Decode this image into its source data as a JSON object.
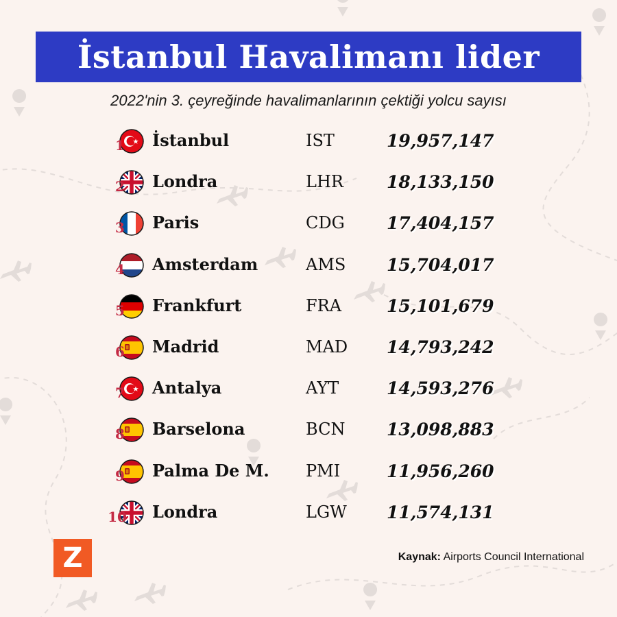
{
  "title": "İstanbul Havalimanı lider",
  "subtitle": "2022'nin 3. çeyreğinde havalimanlarının çektiği yolcu sayısı",
  "logo": {
    "text": "Z",
    "color": "#f15a24"
  },
  "source": {
    "label": "Kaynak:",
    "text": "Airports Council International"
  },
  "colors": {
    "title_bg": "#2d3bc4",
    "rank": "#c42a44",
    "background": "#fbf3ef"
  },
  "chart_data": {
    "type": "table",
    "title": "İstanbul Havalimanı lider",
    "subtitle": "2022'nin 3. çeyreğinde havalimanlarının çektiği yolcu sayısı",
    "rows": [
      {
        "rank": "1",
        "flag": "turkey-flag-icon",
        "city": "İstanbul",
        "code": "IST",
        "value": "19,957,147"
      },
      {
        "rank": "2",
        "flag": "uk-flag-icon",
        "city": "Londra",
        "code": "LHR",
        "value": "18,133,150"
      },
      {
        "rank": "3",
        "flag": "france-flag-icon",
        "city": "Paris",
        "code": "CDG",
        "value": "17,404,157"
      },
      {
        "rank": "4",
        "flag": "netherlands-flag-icon",
        "city": "Amsterdam",
        "code": "AMS",
        "value": "15,704,017"
      },
      {
        "rank": "5",
        "flag": "germany-flag-icon",
        "city": "Frankfurt",
        "code": "FRA",
        "value": "15,101,679"
      },
      {
        "rank": "6",
        "flag": "spain-flag-icon",
        "city": "Madrid",
        "code": "MAD",
        "value": "14,793,242"
      },
      {
        "rank": "7",
        "flag": "turkey-flag-icon",
        "city": "Antalya",
        "code": "AYT",
        "value": "14,593,276"
      },
      {
        "rank": "8",
        "flag": "spain-flag-icon",
        "city": "Barselona",
        "code": "BCN",
        "value": "13,098,883"
      },
      {
        "rank": "9",
        "flag": "spain-flag-icon",
        "city": "Palma De M.",
        "code": "PMI",
        "value": "11,956,260"
      },
      {
        "rank": "10",
        "flag": "uk-flag-icon",
        "city": "Londra",
        "code": "LGW",
        "value": "11,574,131"
      }
    ]
  }
}
